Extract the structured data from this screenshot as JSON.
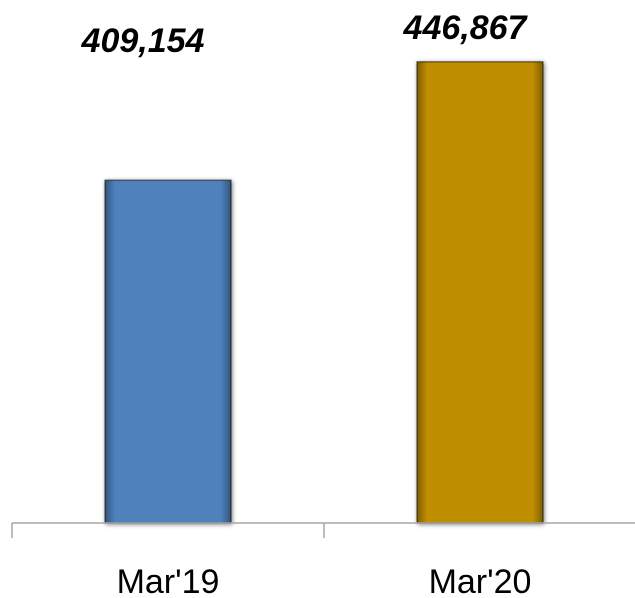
{
  "chart_data": {
    "type": "bar",
    "categories": [
      "Mar'19",
      "Mar'20"
    ],
    "values": [
      409154,
      446867
    ],
    "value_labels": [
      "409,154",
      "446,867"
    ],
    "bar_colors": [
      "#4f81bd",
      "#c08f00"
    ],
    "ylim": [
      300000,
      450000
    ],
    "grid": false,
    "legend": "none",
    "title": "",
    "xlabel": "",
    "ylabel": ""
  }
}
